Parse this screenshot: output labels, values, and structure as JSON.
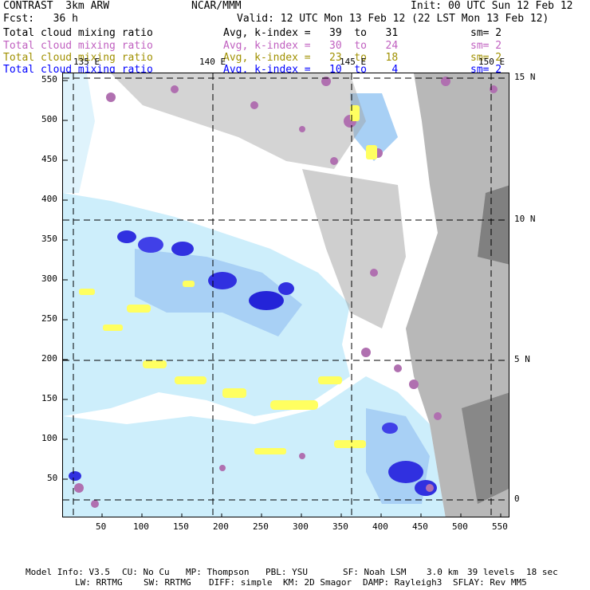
{
  "header": {
    "model_name": "CONTRAST  3km ARW",
    "organization": "NCAR/MMM",
    "init_time": "Init: 00 UTC Sun 12 Feb 12",
    "forecast": "Fcst:   36 h",
    "valid_time": "Valid: 12 UTC Mon 13 Feb 12 (22 LST Mon 13 Feb 12)"
  },
  "legend": [
    {
      "field": "Total cloud mixing ratio",
      "levels": "Avg, k-index =   39  to   31",
      "smoothing": "sm= 2",
      "color": "#000000"
    },
    {
      "field": "Total cloud mixing ratio",
      "levels": "Avg, k-index =   30  to   24",
      "smoothing": "sm= 2",
      "color": "#c060c0"
    },
    {
      "field": "Total cloud mixing ratio",
      "levels": "Avg, k-index =   23  to   18",
      "smoothing": "sm= 2",
      "color": "#a09000"
    },
    {
      "field": "Total cloud mixing ratio",
      "levels": "Avg, k-index =   10  to    4",
      "smoothing": "sm= 2",
      "color": "#0000ff"
    }
  ],
  "longitude_labels": [
    "135 E",
    "140 E",
    "145 E",
    "150 E"
  ],
  "latitude_labels": [
    "15 N",
    "10 N",
    "5 N",
    "0"
  ],
  "x_axis_ticks": [
    "50",
    "100",
    "150",
    "200",
    "250",
    "300",
    "350",
    "400",
    "450",
    "500",
    "550"
  ],
  "y_axis_ticks": [
    "550",
    "500",
    "450",
    "400",
    "350",
    "300",
    "250",
    "200",
    "150",
    "100",
    "50"
  ],
  "footer": {
    "model_info": "Model Info: V3.5",
    "cumulus": "CU: No Cu",
    "microphysics": "MP: Thompson",
    "pbl": "PBL: YSU",
    "surface": "SF: Noah LSM",
    "resolution": "3.0 km",
    "levels": "39 levels",
    "timestep": "18 sec",
    "longwave": "LW: RRTMG",
    "shortwave": "SW: RRTMG",
    "diffusion": "DIFF: simple",
    "km": "KM: 2D Smagor",
    "damping": "DAMP: Rayleigh3",
    "sflay": "SFLAY: Rev MM5"
  },
  "colors": {
    "low_cloud_gray": "#a0a0a0",
    "mid_cloud_purple": "#b070b0",
    "dark_purple": "#800080",
    "yellow_cloud": "#ffff60",
    "high_cloud_lightblue": "#cdeefb",
    "high_cloud_blue": "#a8d0f5",
    "deep_blue": "#3030e0"
  }
}
